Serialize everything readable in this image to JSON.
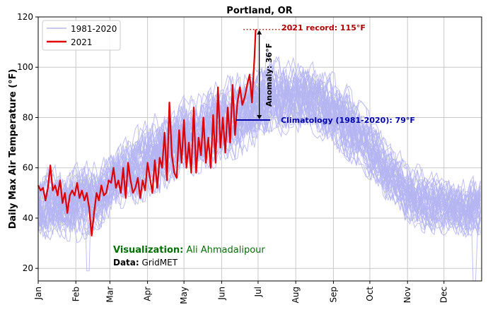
{
  "chart_data": {
    "type": "line",
    "title": "Portland, OR",
    "ylabel": "Daily Max Air Temperature (°F)",
    "xlabel": "",
    "ylim": [
      15,
      120
    ],
    "yticks": [
      20,
      40,
      60,
      80,
      100,
      120
    ],
    "x_unit": "day of year",
    "xlim": [
      1,
      366
    ],
    "months": [
      {
        "label": "Jan",
        "day": 1
      },
      {
        "label": "Feb",
        "day": 32
      },
      {
        "label": "Mar",
        "day": 60
      },
      {
        "label": "Apr",
        "day": 91
      },
      {
        "label": "May",
        "day": 121
      },
      {
        "label": "Jun",
        "day": 152
      },
      {
        "label": "Jul",
        "day": 182
      },
      {
        "label": "Aug",
        "day": 213
      },
      {
        "label": "Sep",
        "day": 244
      },
      {
        "label": "Oct",
        "day": 274
      },
      {
        "label": "Nov",
        "day": 305
      },
      {
        "label": "Dec",
        "day": 335
      }
    ],
    "grid": true,
    "legend_position": "top-left",
    "series": [
      {
        "name": "1981-2020",
        "color": "#b5b5f2",
        "kind": "envelope",
        "x": [
          1,
          15,
          32,
          46,
          60,
          74,
          91,
          105,
          121,
          135,
          152,
          166,
          182,
          196,
          213,
          227,
          244,
          258,
          274,
          288,
          305,
          319,
          335,
          350,
          366
        ],
        "low": [
          30,
          32,
          30,
          33,
          40,
          44,
          47,
          51,
          55,
          58,
          61,
          64,
          68,
          72,
          74,
          73,
          68,
          62,
          55,
          46,
          38,
          34,
          33,
          31,
          32
        ],
        "high": [
          60,
          61,
          62,
          64,
          68,
          74,
          80,
          86,
          89,
          92,
          95,
          100,
          102,
          104,
          105,
          103,
          98,
          92,
          82,
          72,
          64,
          60,
          58,
          57,
          58
        ],
        "extremes": [
          {
            "x": 42,
            "low": 19
          },
          {
            "x": 360,
            "low": 15
          },
          {
            "x": 190,
            "high": 106
          }
        ]
      },
      {
        "name": "2021",
        "color": "#e00000",
        "x": [
          1,
          3,
          5,
          7,
          9,
          11,
          13,
          15,
          17,
          19,
          21,
          23,
          25,
          27,
          29,
          31,
          33,
          35,
          37,
          39,
          41,
          43,
          45,
          47,
          49,
          51,
          53,
          55,
          57,
          59,
          61,
          63,
          65,
          67,
          69,
          71,
          73,
          75,
          77,
          79,
          81,
          83,
          85,
          87,
          89,
          91,
          93,
          95,
          97,
          99,
          101,
          103,
          105,
          107,
          109,
          111,
          113,
          115,
          117,
          119,
          121,
          123,
          125,
          127,
          129,
          131,
          133,
          135,
          137,
          139,
          141,
          143,
          145,
          147,
          149,
          151,
          153,
          155,
          157,
          159,
          161,
          163,
          165,
          167,
          169,
          171,
          173,
          175,
          177,
          179,
          180
        ],
        "values": [
          53,
          51,
          52,
          47,
          52,
          61,
          51,
          53,
          49,
          55,
          46,
          50,
          42,
          49,
          51,
          49,
          54,
          48,
          51,
          47,
          50,
          44,
          33,
          42,
          50,
          47,
          53,
          49,
          50,
          55,
          54,
          60,
          52,
          55,
          50,
          60,
          48,
          62,
          55,
          50,
          52,
          56,
          48,
          55,
          51,
          62,
          56,
          50,
          63,
          52,
          64,
          60,
          74,
          55,
          86,
          65,
          58,
          56,
          75,
          62,
          79,
          60,
          70,
          58,
          84,
          58,
          72,
          65,
          80,
          62,
          72,
          60,
          81,
          62,
          92,
          68,
          80,
          66,
          84,
          70,
          93,
          73,
          86,
          92,
          85,
          88,
          93,
          97,
          86,
          104,
          115
        ]
      }
    ],
    "annotations": {
      "record": {
        "label": "2021 record: 115°F",
        "value": 115,
        "day_start": 170,
        "day_end": 210
      },
      "climatology": {
        "label": "Climatology (1981-2020): 79°F",
        "value": 79,
        "day_start": 164,
        "day_end": 192
      },
      "anomaly": {
        "label": "Anomaly: 36°F",
        "day": 183,
        "from": 79,
        "to": 115
      }
    },
    "credit": {
      "viz_prefix": "Visualization:",
      "viz_name": "Ali Ahmadalipour",
      "data_prefix": "Data:",
      "data_name": "GridMET"
    },
    "colors": {
      "record": "#b00000",
      "climatology": "#0000aa",
      "credit": "#007000",
      "grid": "#c8c8c8"
    }
  }
}
